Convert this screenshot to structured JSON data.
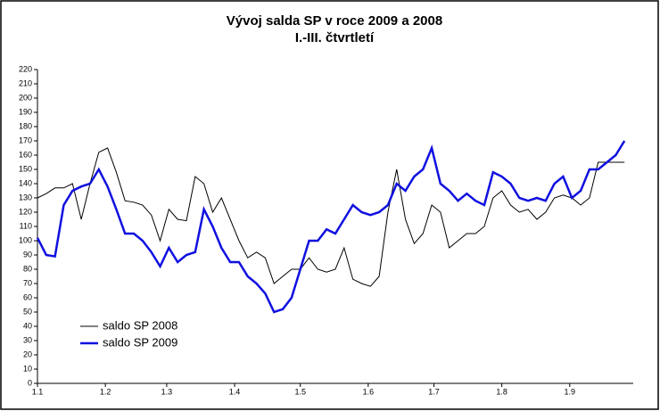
{
  "chart_data": {
    "type": "line",
    "title": "Vývoj salda SP v roce 2009 a 2008",
    "subtitle": "I.-III. čtvrtletí",
    "x": [
      0,
      4,
      8,
      12,
      16,
      20,
      24,
      28,
      32,
      36,
      40,
      44,
      48,
      52,
      56,
      60,
      64,
      68,
      72,
      76,
      80,
      84,
      88,
      92,
      96,
      100,
      104,
      108,
      112,
      116,
      120,
      124,
      128,
      132,
      136,
      140,
      144,
      148,
      152,
      156,
      160,
      164,
      168,
      172,
      176,
      180,
      184,
      188,
      192,
      196,
      200,
      204,
      208,
      212,
      216,
      220,
      224,
      228,
      232,
      236,
      240,
      244,
      248,
      252,
      256,
      260,
      264,
      268
    ],
    "series": [
      {
        "name": "saldo SP 2008",
        "color": "#000000",
        "width": 1,
        "values": [
          130,
          133,
          137,
          137,
          140,
          115,
          140,
          162,
          165,
          148,
          128,
          127,
          125,
          118,
          100,
          122,
          115,
          114,
          145,
          140,
          120,
          130,
          115,
          100,
          88,
          92,
          88,
          70,
          75,
          80,
          80,
          88,
          80,
          78,
          80,
          95,
          73,
          70,
          68,
          75,
          120,
          150,
          115,
          98,
          105,
          125,
          120,
          95,
          100,
          105,
          105,
          110,
          130,
          135,
          125,
          120,
          122,
          115,
          120,
          130,
          132,
          130,
          125,
          130,
          155,
          155,
          155,
          155
        ]
      },
      {
        "name": "saldo SP 2009",
        "color": "#1010e0",
        "width": 2.5,
        "values": [
          102,
          90,
          89,
          125,
          135,
          138,
          140,
          150,
          138,
          122,
          105,
          105,
          100,
          92,
          82,
          95,
          85,
          90,
          92,
          122,
          110,
          95,
          85,
          85,
          75,
          70,
          63,
          50,
          52,
          60,
          80,
          100,
          100,
          108,
          105,
          115,
          125,
          120,
          118,
          120,
          125,
          140,
          135,
          145,
          150,
          165,
          140,
          135,
          128,
          133,
          128,
          125,
          148,
          145,
          140,
          130,
          128,
          130,
          128,
          140,
          145,
          130,
          135,
          150,
          150,
          155,
          160,
          170
        ]
      }
    ],
    "xlim": [
      0,
      272
    ],
    "xticks": [
      {
        "value": 0,
        "label": "1.1"
      },
      {
        "value": 31,
        "label": "1.2"
      },
      {
        "value": 59,
        "label": "1.3"
      },
      {
        "value": 90,
        "label": "1.4"
      },
      {
        "value": 120,
        "label": "1.5"
      },
      {
        "value": 151,
        "label": "1.6"
      },
      {
        "value": 181,
        "label": "1.7"
      },
      {
        "value": 212,
        "label": "1.8"
      },
      {
        "value": 243,
        "label": "1.9"
      }
    ],
    "ylim": [
      0,
      220
    ],
    "yticks": [
      0,
      10,
      20,
      30,
      40,
      50,
      60,
      70,
      80,
      90,
      100,
      110,
      120,
      130,
      140,
      150,
      160,
      170,
      180,
      190,
      200,
      210,
      220
    ],
    "legend": "lower-left"
  }
}
